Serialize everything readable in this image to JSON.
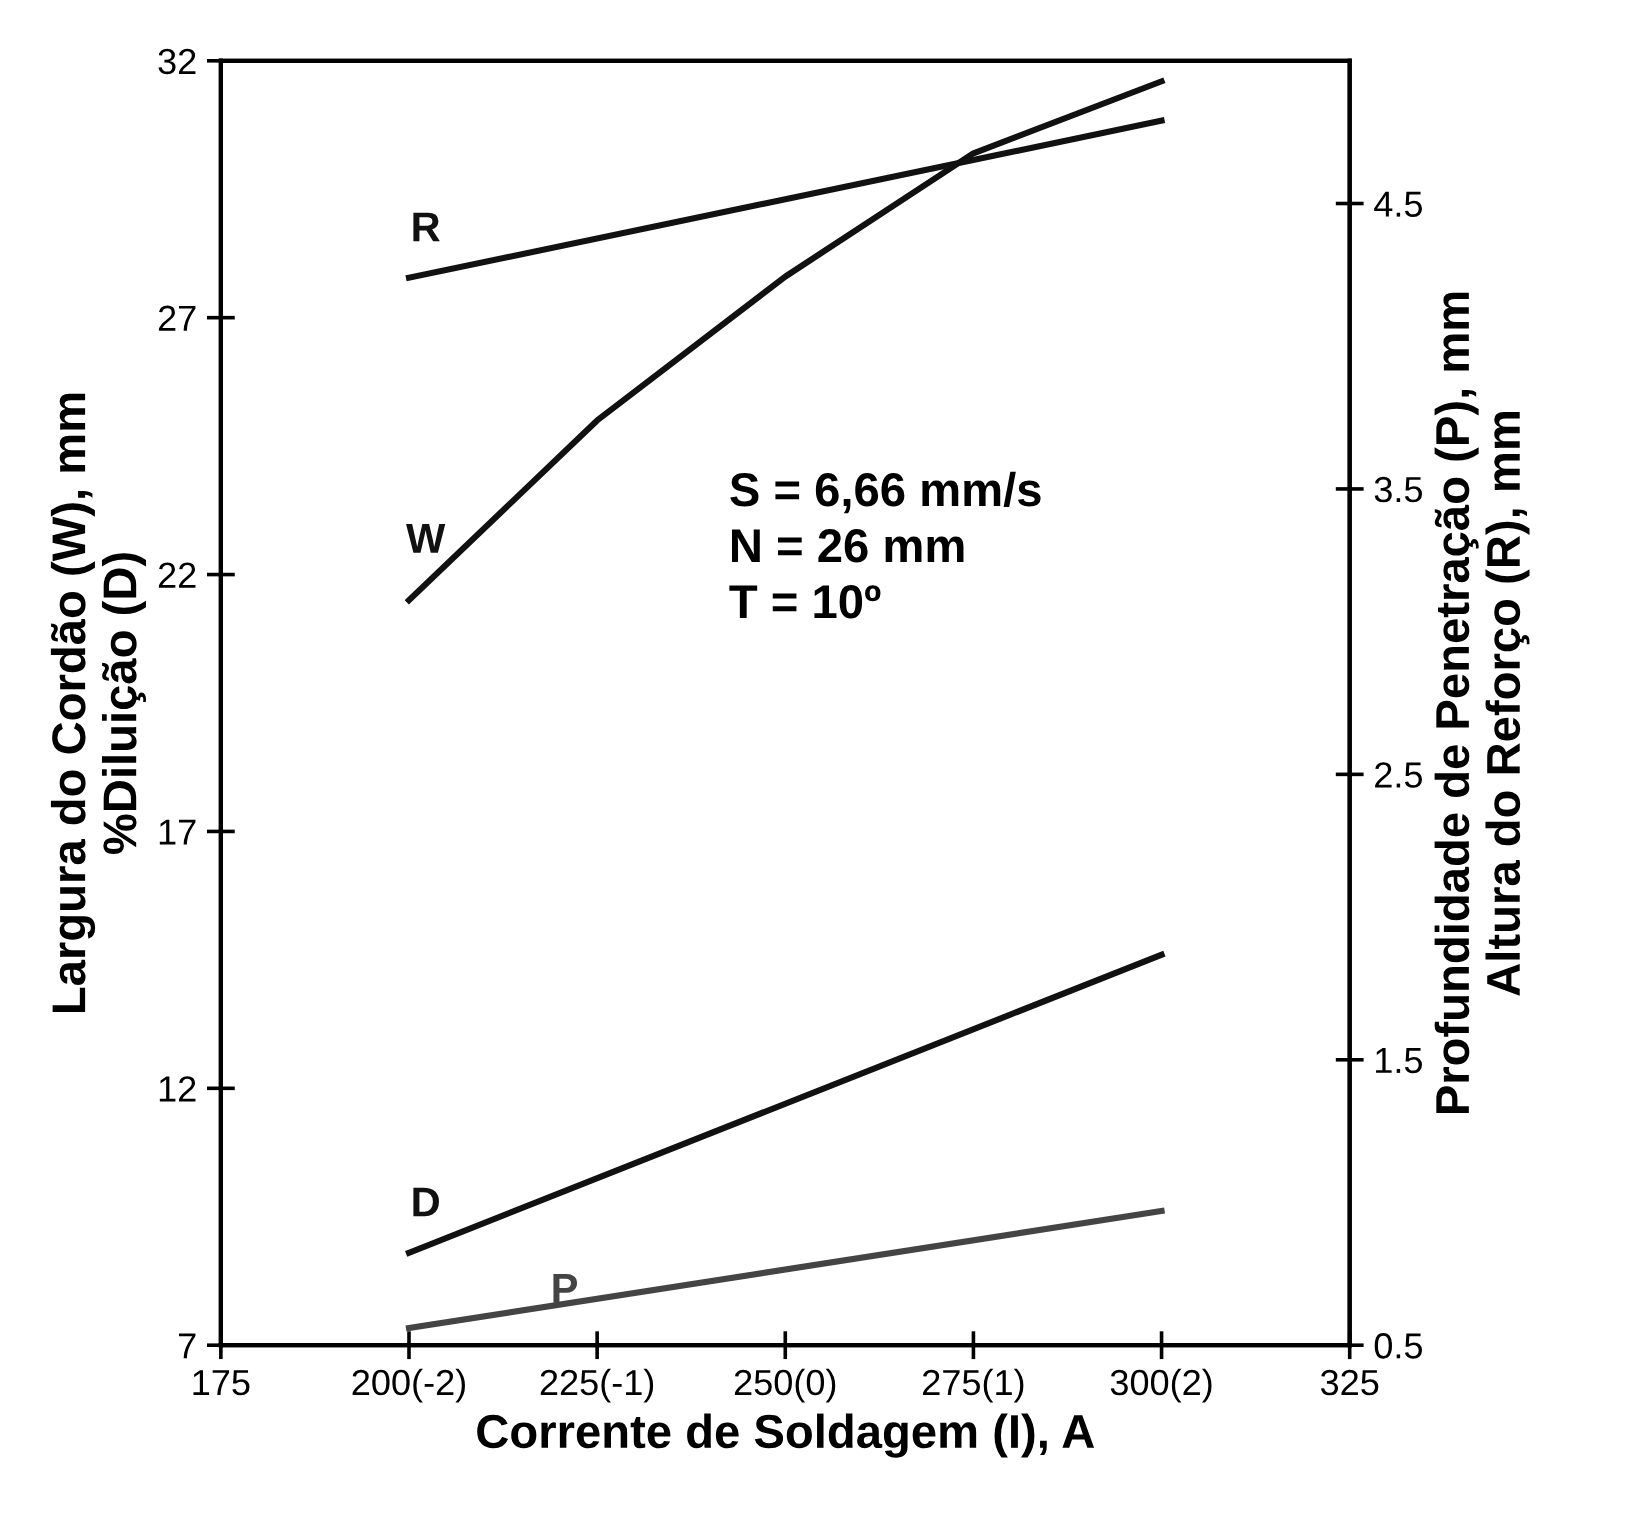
{
  "chart_data": {
    "type": "line",
    "xlabel": "Corrente de Soldagem (I), A",
    "ylabel": "Largura do Cordão (W), mm\n%Diluição (D)",
    "y2label": "Profundidade de Penetração (P), mm\nAltura do Reforço (R), mm",
    "x": [
      200,
      225,
      250,
      275,
      300
    ],
    "xlim": [
      175,
      325
    ],
    "xticks": [
      175,
      {
        "value": 200,
        "label": "200(-2)"
      },
      {
        "value": 225,
        "label": "225(-1)"
      },
      {
        "value": 250,
        "label": "250(0)"
      },
      {
        "value": 275,
        "label": "275(1)"
      },
      {
        "value": 300,
        "label": "300(2)"
      },
      325
    ],
    "ylim": [
      7,
      32
    ],
    "yticks": [
      7,
      12,
      17,
      22,
      27,
      32
    ],
    "y2lim": [
      0.5,
      5.0
    ],
    "y2ticks": [
      0.5,
      1.5,
      2.5,
      3.5,
      4.5
    ],
    "series": [
      {
        "name": "R",
        "color": "#111111",
        "axis": "y2",
        "values": [
          4.24,
          null,
          null,
          null,
          4.79
        ]
      },
      {
        "name": "W",
        "color": "#111111",
        "values": [
          21.5,
          25.0,
          27.8,
          30.2,
          31.6
        ]
      },
      {
        "name": "D",
        "color": "#111111",
        "values": [
          8.8,
          null,
          null,
          null,
          14.6
        ]
      },
      {
        "name": "P",
        "color": "#444444",
        "axis": "y2",
        "values": [
          0.56,
          null,
          null,
          null,
          0.97
        ]
      }
    ],
    "annotations": [
      "S = 6,66 mm/s\nN = 26 mm\nT = 10º"
    ],
    "grid": false,
    "legend": false,
    "marker": "none",
    "line_style": "solid"
  }
}
